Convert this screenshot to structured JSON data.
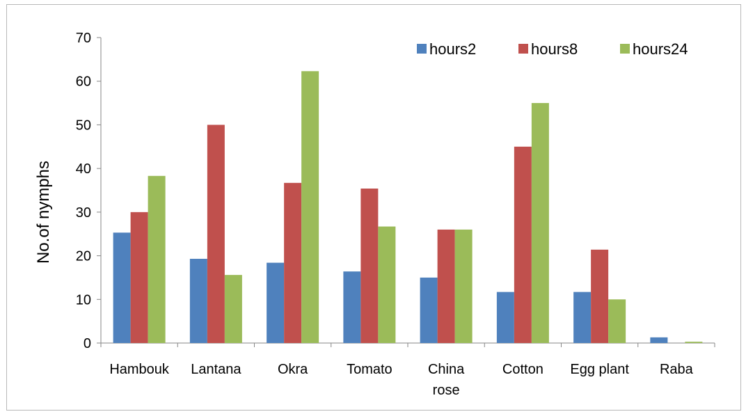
{
  "chart_data": {
    "type": "bar",
    "title": "",
    "xlabel": "",
    "ylabel": "No.of nymphs",
    "ylim": [
      0,
      70
    ],
    "yticks": [
      0,
      10,
      20,
      30,
      40,
      50,
      60,
      70
    ],
    "grid": false,
    "legend_position": "top-right",
    "categories": [
      [
        "Hambouk"
      ],
      [
        "Lantana"
      ],
      [
        "Okra"
      ],
      [
        "Tomato"
      ],
      [
        "China",
        "rose"
      ],
      [
        "Cotton"
      ],
      [
        "Egg plant"
      ],
      [
        "Raba"
      ]
    ],
    "series": [
      {
        "name": "hours2",
        "color": "#4F81BD",
        "values": [
          25.3,
          19.3,
          18.4,
          16.4,
          15.0,
          11.7,
          11.7,
          1.3
        ]
      },
      {
        "name": "hours8",
        "color": "#C0504D",
        "values": [
          30.0,
          50.0,
          36.7,
          35.4,
          26.0,
          45.0,
          21.4,
          0
        ]
      },
      {
        "name": "hours24",
        "color": "#9BBB59",
        "values": [
          38.3,
          15.6,
          62.3,
          26.7,
          26.0,
          55.0,
          10.0,
          0.3
        ]
      }
    ]
  }
}
